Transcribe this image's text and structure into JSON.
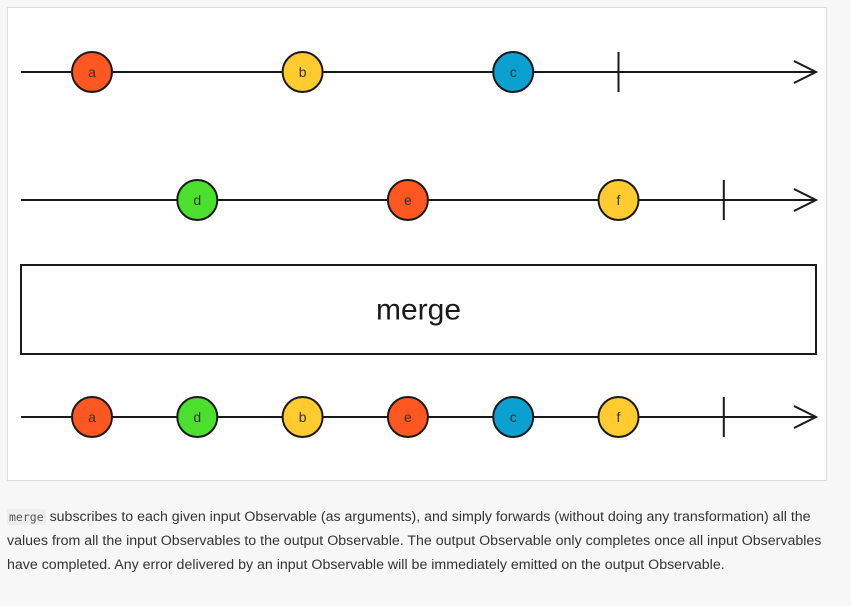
{
  "diagram": {
    "operator_label": "merge",
    "timelines": [
      {
        "name": "input-observable-1",
        "marbles": [
          {
            "label": "a",
            "color": "#ff5722",
            "order": 1
          },
          {
            "label": "b",
            "color": "#ffcb2e",
            "order": 3
          },
          {
            "label": "c",
            "color": "#0aa0d0",
            "order": 5
          }
        ],
        "completes_after": 6
      },
      {
        "name": "input-observable-2",
        "marbles": [
          {
            "label": "d",
            "color": "#4ce02e",
            "order": 2
          },
          {
            "label": "e",
            "color": "#ff5722",
            "order": 4
          },
          {
            "label": "f",
            "color": "#ffcb2e",
            "order": 6
          }
        ],
        "completes_after": 7
      },
      {
        "name": "output-observable",
        "marbles": [
          {
            "label": "a",
            "color": "#ff5722",
            "order": 1
          },
          {
            "label": "d",
            "color": "#4ce02e",
            "order": 2
          },
          {
            "label": "b",
            "color": "#ffcb2e",
            "order": 3
          },
          {
            "label": "e",
            "color": "#ff5722",
            "order": 4
          },
          {
            "label": "c",
            "color": "#0aa0d0",
            "order": 5
          },
          {
            "label": "f",
            "color": "#ffcb2e",
            "order": 6
          }
        ],
        "completes_after": 7
      }
    ]
  },
  "description": {
    "code": "merge",
    "text": " subscribes to each given input Observable (as arguments), and simply forwards (without doing any transformation) all the values from all the input Observables to the output Observable. The output Observable only completes once all input Observables have completed. Any error delivered by an input Observable will be immediately emitted on the output Observable."
  }
}
